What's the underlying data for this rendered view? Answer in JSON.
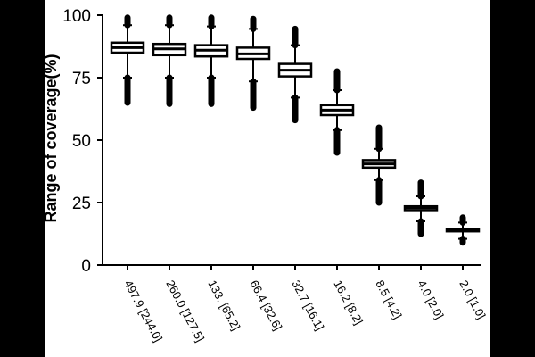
{
  "chart_data": {
    "type": "box",
    "title": "",
    "xlabel": "",
    "ylabel": "Range of coverage(%)",
    "ylim": [
      0,
      100
    ],
    "yticks": [
      0,
      25,
      50,
      75,
      100
    ],
    "grid": false,
    "legend": "none",
    "categories": [
      "497.9 [244.0]",
      "260.0 [127.5]",
      "133. [65.2]",
      "66.4 [32.6]",
      "32.7 [16.1]",
      "16.2 [8.2]",
      "8.5 [4.2]",
      "4.0 [2.0]",
      "2.0 [1.0]"
    ],
    "boxes": [
      {
        "whisker_low": 75,
        "q1": 85,
        "median": 87,
        "q3": 89,
        "whisker_high": 96,
        "outlier_low": 65,
        "outlier_high": 99
      },
      {
        "whisker_low": 75,
        "q1": 84,
        "median": 86.5,
        "q3": 88.5,
        "whisker_high": 96,
        "outlier_low": 64.5,
        "outlier_high": 99
      },
      {
        "whisker_low": 75,
        "q1": 83.5,
        "median": 86,
        "q3": 88,
        "whisker_high": 95.5,
        "outlier_low": 64.5,
        "outlier_high": 99
      },
      {
        "whisker_low": 73.5,
        "q1": 82.5,
        "median": 84.5,
        "q3": 87,
        "whisker_high": 94.5,
        "outlier_low": 63,
        "outlier_high": 98.5
      },
      {
        "whisker_low": 67,
        "q1": 75.5,
        "median": 78,
        "q3": 80.5,
        "whisker_high": 88,
        "outlier_low": 58,
        "outlier_high": 94.5
      },
      {
        "whisker_low": 54,
        "q1": 60,
        "median": 62,
        "q3": 64,
        "whisker_high": 70,
        "outlier_low": 45,
        "outlier_high": 77.5
      },
      {
        "whisker_low": 34,
        "q1": 39,
        "median": 40.5,
        "q3": 42,
        "whisker_high": 46.5,
        "outlier_low": 25,
        "outlier_high": 55
      },
      {
        "whisker_low": 17.5,
        "q1": 22,
        "median": 23,
        "q3": 23.5,
        "whisker_high": 27.5,
        "outlier_low": 12.5,
        "outlier_high": 33
      },
      {
        "whisker_low": 10.5,
        "q1": 13.5,
        "median": 14,
        "q3": 14.5,
        "whisker_high": 17,
        "outlier_low": 9,
        "outlier_high": 19
      }
    ],
    "colors": {
      "background": "#ffffff",
      "frame": "#000000",
      "box_fill": "#ffffff",
      "stroke": "#000000"
    }
  }
}
